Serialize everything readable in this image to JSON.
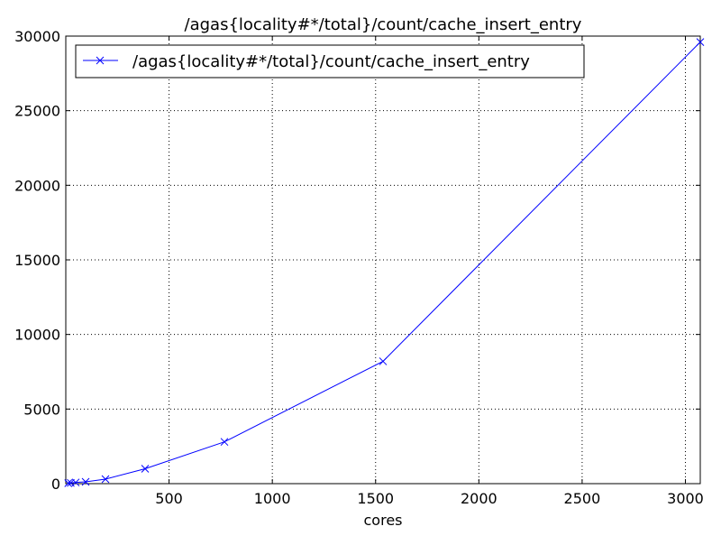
{
  "chart_data": {
    "type": "line",
    "title": "/agas{locality#*/total}/count/cache_insert_entry",
    "xlabel": "cores",
    "ylabel": "",
    "xlim": [
      0,
      3072
    ],
    "ylim": [
      0,
      30000
    ],
    "xticks": [
      500,
      1000,
      1500,
      2000,
      2500,
      3000
    ],
    "yticks": [
      0,
      5000,
      10000,
      15000,
      20000,
      25000,
      30000
    ],
    "grid": true,
    "legend_position": "top-left",
    "series": [
      {
        "name": "/agas{locality#*/total}/count/cache_insert_entry",
        "color": "#0000ff",
        "marker": "x",
        "x": [
          12,
          24,
          48,
          96,
          192,
          384,
          768,
          1536,
          3072
        ],
        "y": [
          30,
          50,
          80,
          120,
          300,
          1000,
          2800,
          8200,
          29600
        ]
      }
    ]
  }
}
